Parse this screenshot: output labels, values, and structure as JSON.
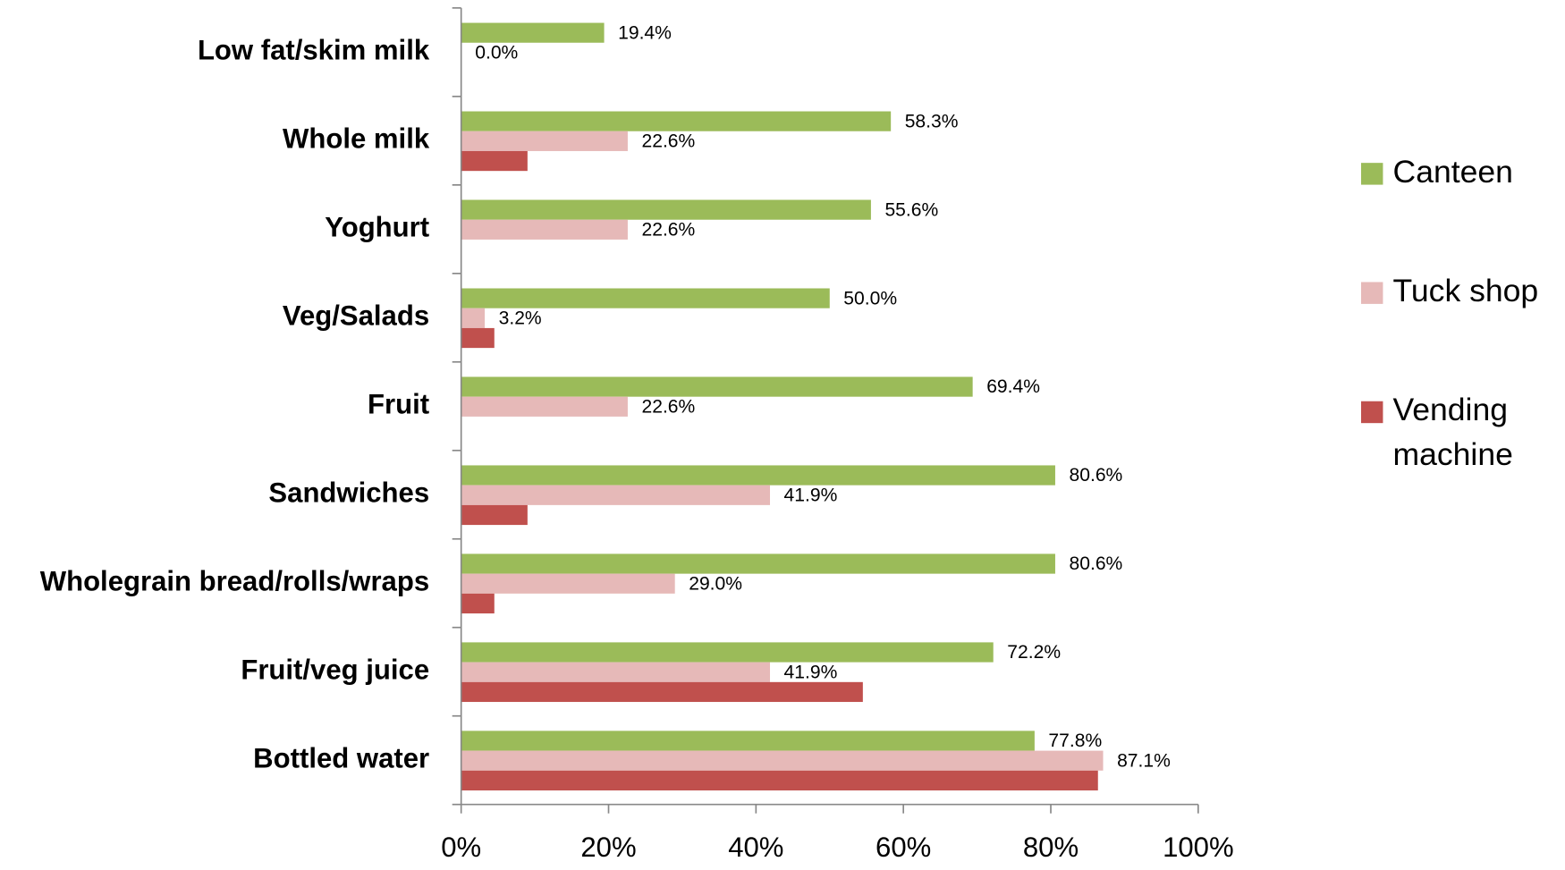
{
  "chart_data": {
    "type": "hbar",
    "categories": [
      "Low fat/skim milk",
      "Whole milk",
      "Yoghurt",
      "Veg/Salads",
      "Fruit",
      "Sandwiches",
      "Wholegrain bread/rolls/wraps",
      "Fruit/veg juice",
      "Bottled water"
    ],
    "series": [
      {
        "name": "Canteen",
        "color": "#9bbb59",
        "values": [
          19.4,
          58.3,
          55.6,
          50.0,
          69.4,
          80.6,
          80.6,
          72.2,
          77.8
        ],
        "value_labels": [
          "19.4%",
          "58.3%",
          "55.6%",
          "50.0%",
          "69.4%",
          "80.6%",
          "80.6%",
          "72.2%",
          "77.8%"
        ]
      },
      {
        "name": "Tuck shop",
        "color": "#e6b9b8",
        "values": [
          0.0,
          22.6,
          22.6,
          3.2,
          22.6,
          41.9,
          29.0,
          41.9,
          87.1
        ],
        "value_labels": [
          "0.0%",
          "22.6%",
          "22.6%",
          "3.2%",
          "22.6%",
          "41.9%",
          "29.0%",
          "41.9%",
          "87.1%"
        ]
      },
      {
        "name": "Vending machine",
        "color": "#c0504d",
        "values": [
          0,
          9.0,
          0,
          4.5,
          0,
          9.0,
          4.5,
          54.5,
          86.4
        ]
      }
    ],
    "xlim": [
      0,
      100
    ],
    "xticks": [
      {
        "value": 0,
        "label": "0%"
      },
      {
        "value": 20,
        "label": "20%"
      },
      {
        "value": 40,
        "label": "40%"
      },
      {
        "value": 60,
        "label": "60%"
      },
      {
        "value": 80,
        "label": "80%"
      },
      {
        "value": 100,
        "label": "100%"
      }
    ],
    "legend": "right"
  }
}
